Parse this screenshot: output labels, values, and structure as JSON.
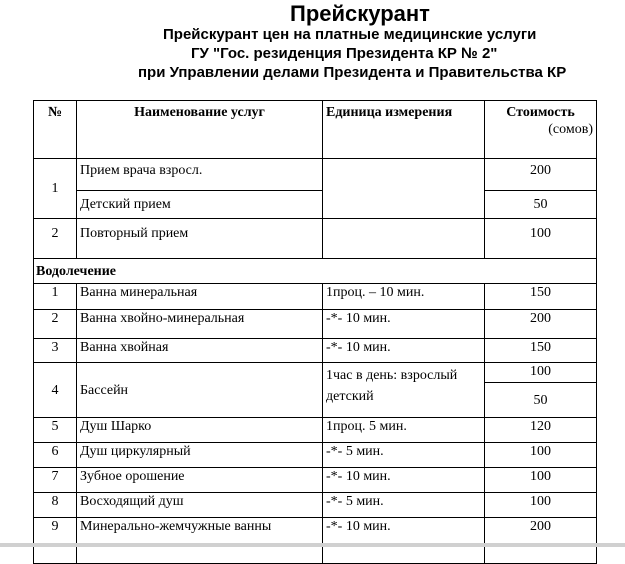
{
  "title": "Прейскурант",
  "subtitle_lines": [
    "Прейскурант цен на платные медицинские услуги",
    "ГУ \"Гос. резиденция Президента КР № 2\"",
    "при Управлении делами Президента и Правительства КР"
  ],
  "table": {
    "headers": {
      "num": "№",
      "name": "Наименование услуг",
      "unit": "Единица измерения",
      "cost": "Стоимость",
      "cost_unit": "(сомов)"
    },
    "general": [
      {
        "num": "1",
        "name_a": "Прием врача взросл.",
        "cost_a": "200",
        "name_b": "Детский прием",
        "cost_b": "50"
      },
      {
        "num": "2",
        "name": "Повторный прием",
        "unit": "",
        "cost": "100"
      }
    ],
    "section": "Водолечение",
    "rows": [
      {
        "num": "1",
        "name": "Ванна минеральная",
        "unit": "1проц. – 10 мин.",
        "cost": "150"
      },
      {
        "num": "2",
        "name": "Ванна хвойно-минеральная",
        "unit": "-*- 10 мин.",
        "cost": "200"
      },
      {
        "num": "3",
        "name": "Ванна хвойная",
        "unit": "-*- 10 мин.",
        "cost": "150"
      },
      {
        "num": "4",
        "name": "Бассейн",
        "unit": "1час в день: взрослый детский",
        "cost_a": "100",
        "cost_b": "50"
      },
      {
        "num": "5",
        "name": "Душ Шарко",
        "unit": "1проц. 5 мин.",
        "cost": "120"
      },
      {
        "num": "6",
        "name": "Душ циркулярный",
        "unit": "-*- 5 мин.",
        "cost": "100"
      },
      {
        "num": "7",
        "name": "Зубное орошение",
        "unit": "-*- 10 мин.",
        "cost": "100"
      },
      {
        "num": "8",
        "name": "Восходящий душ",
        "unit": "-*- 5 мин.",
        "cost": "100"
      },
      {
        "num": "9",
        "name": "Минерально-жемчужные ванны",
        "unit": "-*- 10 мин.",
        "cost": "200"
      }
    ]
  }
}
